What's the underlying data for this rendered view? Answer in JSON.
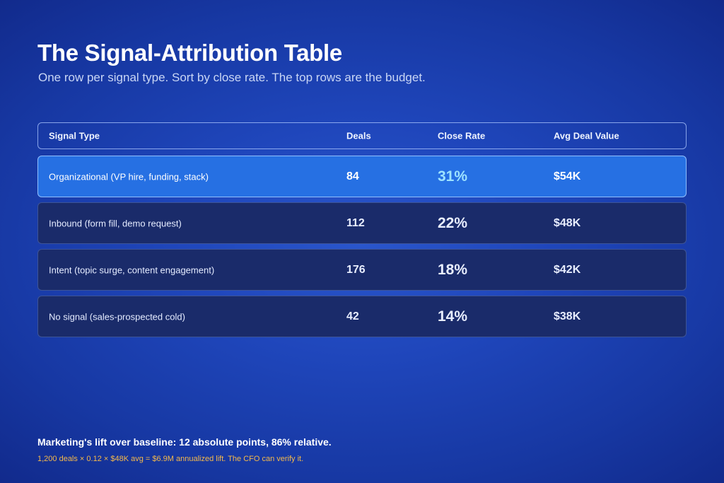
{
  "page": {
    "title": "The Signal-Attribution Table",
    "subtitle": "One row per signal type. Sort by close rate. The top rows are the budget."
  },
  "table": {
    "headers": {
      "signal_type": "Signal Type",
      "deals": "Deals",
      "close_rate": "Close Rate",
      "avg_deal_value": "Avg Deal Value"
    },
    "rows": [
      {
        "signal_type": "Organizational (VP hire, funding, stack)",
        "deals": "84",
        "close_rate": "31%",
        "avg_deal_value": "$54K",
        "highlighted": true
      },
      {
        "signal_type": "Inbound (form fill, demo request)",
        "deals": "112",
        "close_rate": "22%",
        "avg_deal_value": "$48K",
        "highlighted": false
      },
      {
        "signal_type": "Intent (topic surge, content engagement)",
        "deals": "176",
        "close_rate": "18%",
        "avg_deal_value": "$42K",
        "highlighted": false
      },
      {
        "signal_type": "No signal (sales-prospected cold)",
        "deals": "42",
        "close_rate": "14%",
        "avg_deal_value": "$38K",
        "highlighted": false
      }
    ]
  },
  "footer": {
    "summary": "Marketing's lift over baseline: 12 absolute points, 86% relative.",
    "note": "1,200 deals × 0.12 × $48K avg = $6.9M annualized lift. The CFO can verify it."
  },
  "colors": {
    "background": "#1f46bb",
    "highlight_row": "#2670e3",
    "row": "#1a2b6a",
    "highlight_rate": "#9ee3ff",
    "note_accent": "#f5b94a"
  }
}
